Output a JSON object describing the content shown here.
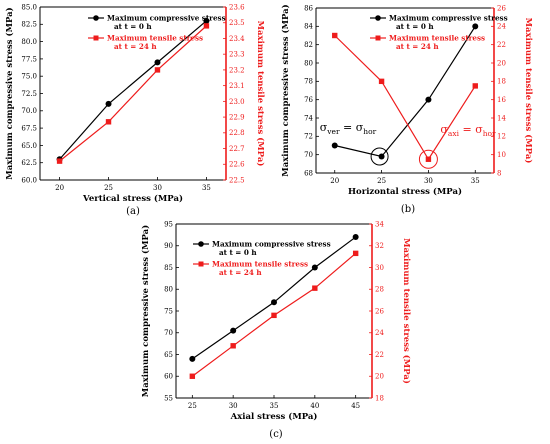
{
  "colors": {
    "compressive": "#000000",
    "tensile": "#ee1c1c",
    "axis_left": "#000000",
    "axis_right": "#ee1c1c"
  },
  "chart_data": [
    {
      "type": "line",
      "panel_label": "(a)",
      "xlabel": "Vertical stress (MPa)",
      "ylabel": "Maximum compressive stress (MPa)",
      "y2label": "Maximum tensile stress (MPa)",
      "x": [
        20,
        25,
        30,
        35
      ],
      "xlim": [
        18,
        37
      ],
      "xticks": [
        20,
        25,
        30,
        35
      ],
      "ylim": [
        60.0,
        85.0
      ],
      "yticks": [
        "60.0",
        "62.5",
        "65.0",
        "67.5",
        "70.0",
        "72.5",
        "75.0",
        "77.5",
        "80.0",
        "82.5",
        "85.0"
      ],
      "y2lim": [
        22.5,
        23.6
      ],
      "y2ticks": [
        "22.5",
        "22.6",
        "22.7",
        "22.8",
        "22.9",
        "23.0",
        "23.1",
        "23.2",
        "23.3",
        "23.4",
        "23.5",
        "23.6"
      ],
      "legend": [
        {
          "line1": "Maximum compressive stress",
          "line2": "at t = 0 h"
        },
        {
          "line1": "Maximum tensile stress",
          "line2": "at t = 24 h"
        }
      ],
      "series": [
        {
          "name": "Maximum compressive stress at t = 0 h",
          "axis": "left",
          "marker": "circle",
          "values": [
            63.0,
            71.0,
            77.0,
            83.0
          ]
        },
        {
          "name": "Maximum tensile stress at t = 24 h",
          "axis": "right",
          "marker": "square",
          "values": [
            22.62,
            22.87,
            23.2,
            23.48
          ]
        }
      ],
      "annotations": []
    },
    {
      "type": "line",
      "panel_label": "(b)",
      "xlabel": "Horizontal stress (MPa)",
      "ylabel": "Maximum compressive stress (MPa)",
      "y2label": "Maximum tensile stress (MPa)",
      "x": [
        20,
        25,
        30,
        35
      ],
      "xlim": [
        18,
        37
      ],
      "xticks": [
        20,
        25,
        30,
        35
      ],
      "ylim": [
        68,
        86
      ],
      "yticks": [
        "68",
        "70",
        "72",
        "74",
        "76",
        "78",
        "80",
        "82",
        "84",
        "86"
      ],
      "y2lim": [
        8,
        26
      ],
      "y2ticks": [
        "8",
        "10",
        "12",
        "14",
        "16",
        "18",
        "20",
        "22",
        "24",
        "26"
      ],
      "legend": [
        {
          "line1": "Maximum compressive stress",
          "line2": "at t = 0 h"
        },
        {
          "line1": "Maximum tensile stress",
          "line2": "at t = 24 h"
        }
      ],
      "series": [
        {
          "name": "Maximum compressive stress at t = 0 h",
          "axis": "left",
          "marker": "circle",
          "values": [
            71.0,
            69.8,
            76.0,
            84.0
          ]
        },
        {
          "name": "Maximum tensile stress at t = 24 h",
          "axis": "right",
          "marker": "square",
          "values": [
            23.0,
            18.0,
            9.5,
            17.5
          ]
        }
      ],
      "annotations": [
        {
          "main": "σ",
          "sub1": "ver",
          "eq": " = σ",
          "sub2": "hor",
          "color": "#000000",
          "circle_x": 25,
          "circle_y": 69.8,
          "circle_axis": "left"
        },
        {
          "main": "σ",
          "sub1": "axi",
          "eq": " = σ",
          "sub2": "hor",
          "color": "#ee1c1c",
          "circle_x": 30,
          "circle_y": 9.5,
          "circle_axis": "right"
        }
      ]
    },
    {
      "type": "line",
      "panel_label": "(c)",
      "xlabel": "Axial stress (MPa)",
      "ylabel": "Maximum compressive stress (MPa)",
      "y2label": "Maximum tensile stress (MPa)",
      "x": [
        25,
        30,
        35,
        40,
        45
      ],
      "xlim": [
        23,
        47
      ],
      "xticks": [
        25,
        30,
        35,
        40,
        45
      ],
      "ylim": [
        55,
        95
      ],
      "yticks": [
        "55",
        "60",
        "65",
        "70",
        "75",
        "80",
        "85",
        "90",
        "95"
      ],
      "y2lim": [
        18,
        34
      ],
      "y2ticks": [
        "18",
        "20",
        "22",
        "24",
        "26",
        "28",
        "30",
        "32",
        "34"
      ],
      "legend": [
        {
          "line1": "Maximum compressive stress",
          "line2": "at t = 0 h"
        },
        {
          "line1": "Maximum tensile stress",
          "line2": "at t = 24 h"
        }
      ],
      "series": [
        {
          "name": "Maximum compressive stress at t = 0 h",
          "axis": "left",
          "marker": "circle",
          "values": [
            64.0,
            70.5,
            77.0,
            85.0,
            92.0
          ]
        },
        {
          "name": "Maximum tensile stress at t = 24 h",
          "axis": "right",
          "marker": "square",
          "values": [
            20.0,
            22.8,
            25.6,
            28.1,
            31.3
          ]
        }
      ],
      "annotations": []
    }
  ]
}
